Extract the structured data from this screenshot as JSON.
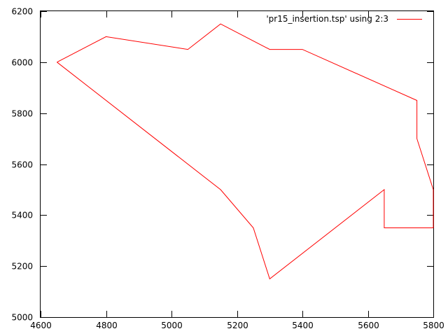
{
  "chart_data": {
    "type": "line",
    "xlim": [
      4600,
      5800
    ],
    "ylim": [
      5000,
      6200
    ],
    "x_ticks": [
      4600,
      4800,
      5000,
      5200,
      5400,
      5600,
      5800
    ],
    "y_ticks": [
      5000,
      5200,
      5400,
      5600,
      5800,
      6000,
      6200
    ],
    "x_tick_labels": [
      "4600",
      "4800",
      "5000",
      "5200",
      "5400",
      "5600",
      "5800"
    ],
    "y_tick_labels": [
      "5000",
      "5200",
      "5400",
      "5600",
      "5800",
      "6000",
      "6200"
    ],
    "grid": false,
    "legend_position": "top-right",
    "series": [
      {
        "name": "'pr15_insertion.tsp' using 2:3",
        "color": "#ff0000",
        "x": [
          4650,
          4800,
          5050,
          5150,
          5300,
          5400,
          5750,
          5750,
          5800,
          5800,
          5650,
          5650,
          5300,
          5250,
          5150,
          4650
        ],
        "y": [
          6000,
          6100,
          6050,
          6150,
          6050,
          6050,
          5850,
          5700,
          5500,
          5350,
          5350,
          5500,
          5150,
          5350,
          5500,
          6000
        ]
      }
    ]
  }
}
